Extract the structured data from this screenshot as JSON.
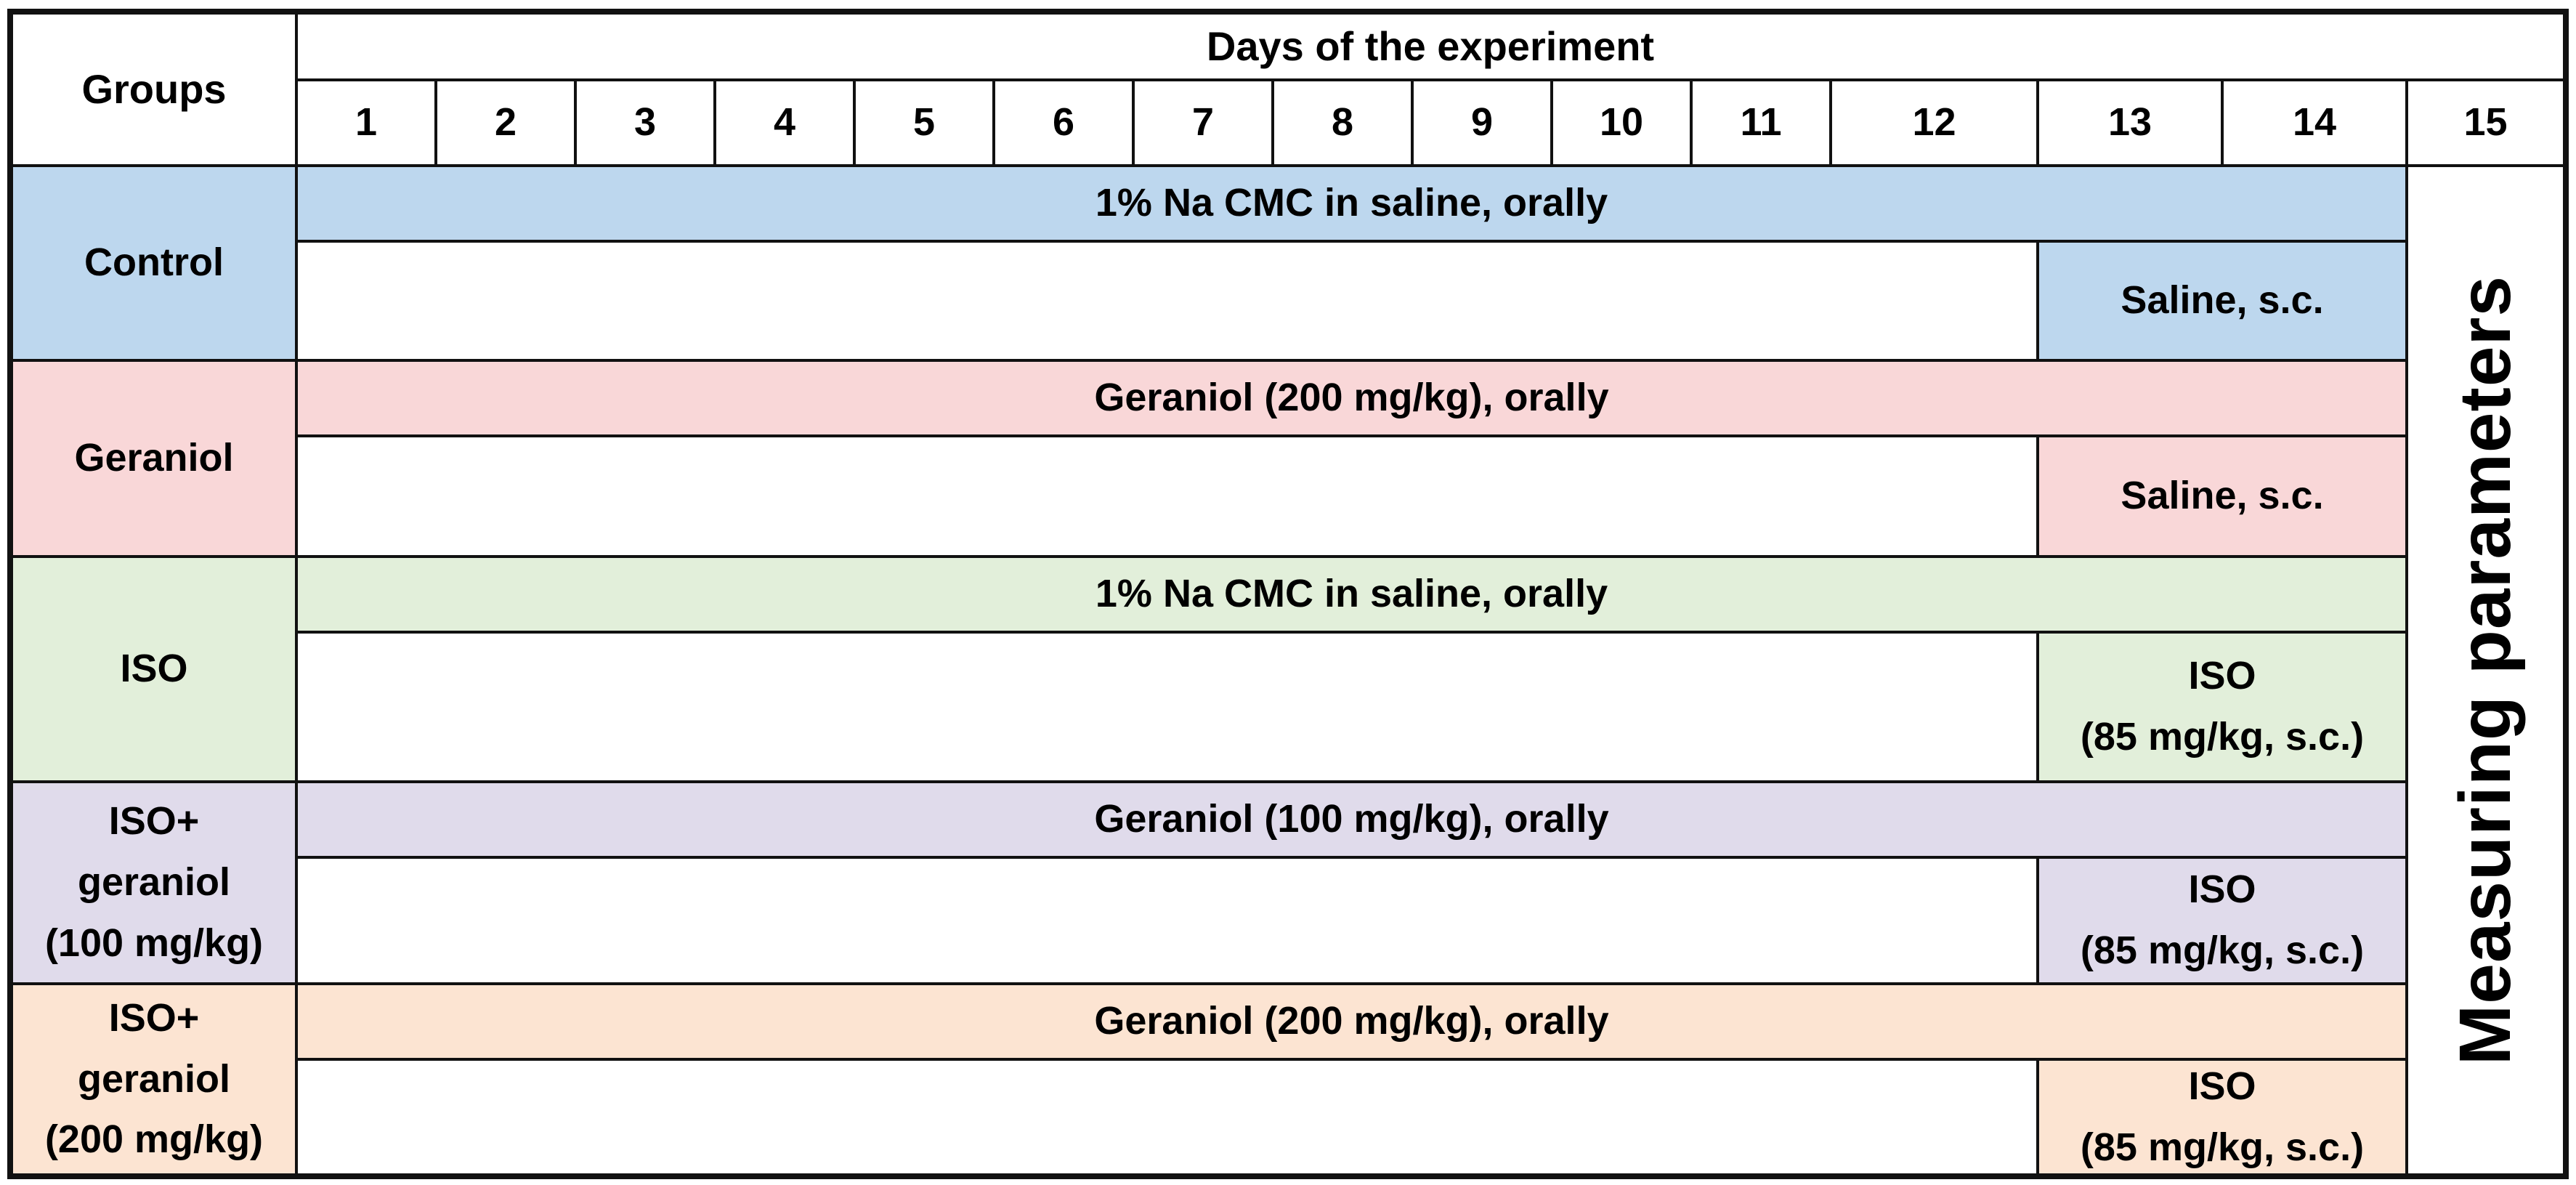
{
  "table": {
    "corner_label": "Groups",
    "days_header": "Days of the experiment",
    "day_numbers": [
      "1",
      "2",
      "3",
      "4",
      "5",
      "6",
      "7",
      "8",
      "9",
      "10",
      "11",
      "12",
      "13",
      "14",
      "15"
    ],
    "measuring_column_label": "Measuring parameters"
  },
  "colors": {
    "border": "#111111",
    "control_blue": "#BDD7EE",
    "geraniol_pink": "#F9D7D8",
    "iso_green": "#E2EFDA",
    "iso_geraniol_100_lavender": "#E0DBEB",
    "iso_geraniol_200_peach": "#FCE4D2"
  },
  "groups": [
    {
      "label_lines": [
        "Control"
      ],
      "color": "#BDD7EE",
      "daily_treatment": "1% Na CMC in saline, orally",
      "final_treatment_lines": [
        "Saline, s.c."
      ]
    },
    {
      "label_lines": [
        "Geraniol"
      ],
      "color": "#F9D7D8",
      "daily_treatment": "Geraniol (200 mg/kg), orally",
      "final_treatment_lines": [
        "Saline, s.c."
      ]
    },
    {
      "label_lines": [
        "ISO"
      ],
      "color": "#E2EFDA",
      "daily_treatment": "1% Na CMC in saline, orally",
      "final_treatment_lines": [
        "ISO",
        "(85 mg/kg, s.c.)"
      ]
    },
    {
      "label_lines": [
        "ISO+",
        "geraniol",
        "(100 mg/kg)"
      ],
      "color": "#E0DBEB",
      "daily_treatment": "Geraniol (100 mg/kg), orally",
      "final_treatment_lines": [
        "ISO",
        "(85 mg/kg, s.c.)"
      ]
    },
    {
      "label_lines": [
        "ISO+",
        "geraniol",
        "(200 mg/kg)"
      ],
      "color": "#FCE4D2",
      "daily_treatment": "Geraniol (200 mg/kg), orally",
      "final_treatment_lines": [
        "ISO",
        "(85 mg/kg, s.c.)"
      ]
    }
  ]
}
